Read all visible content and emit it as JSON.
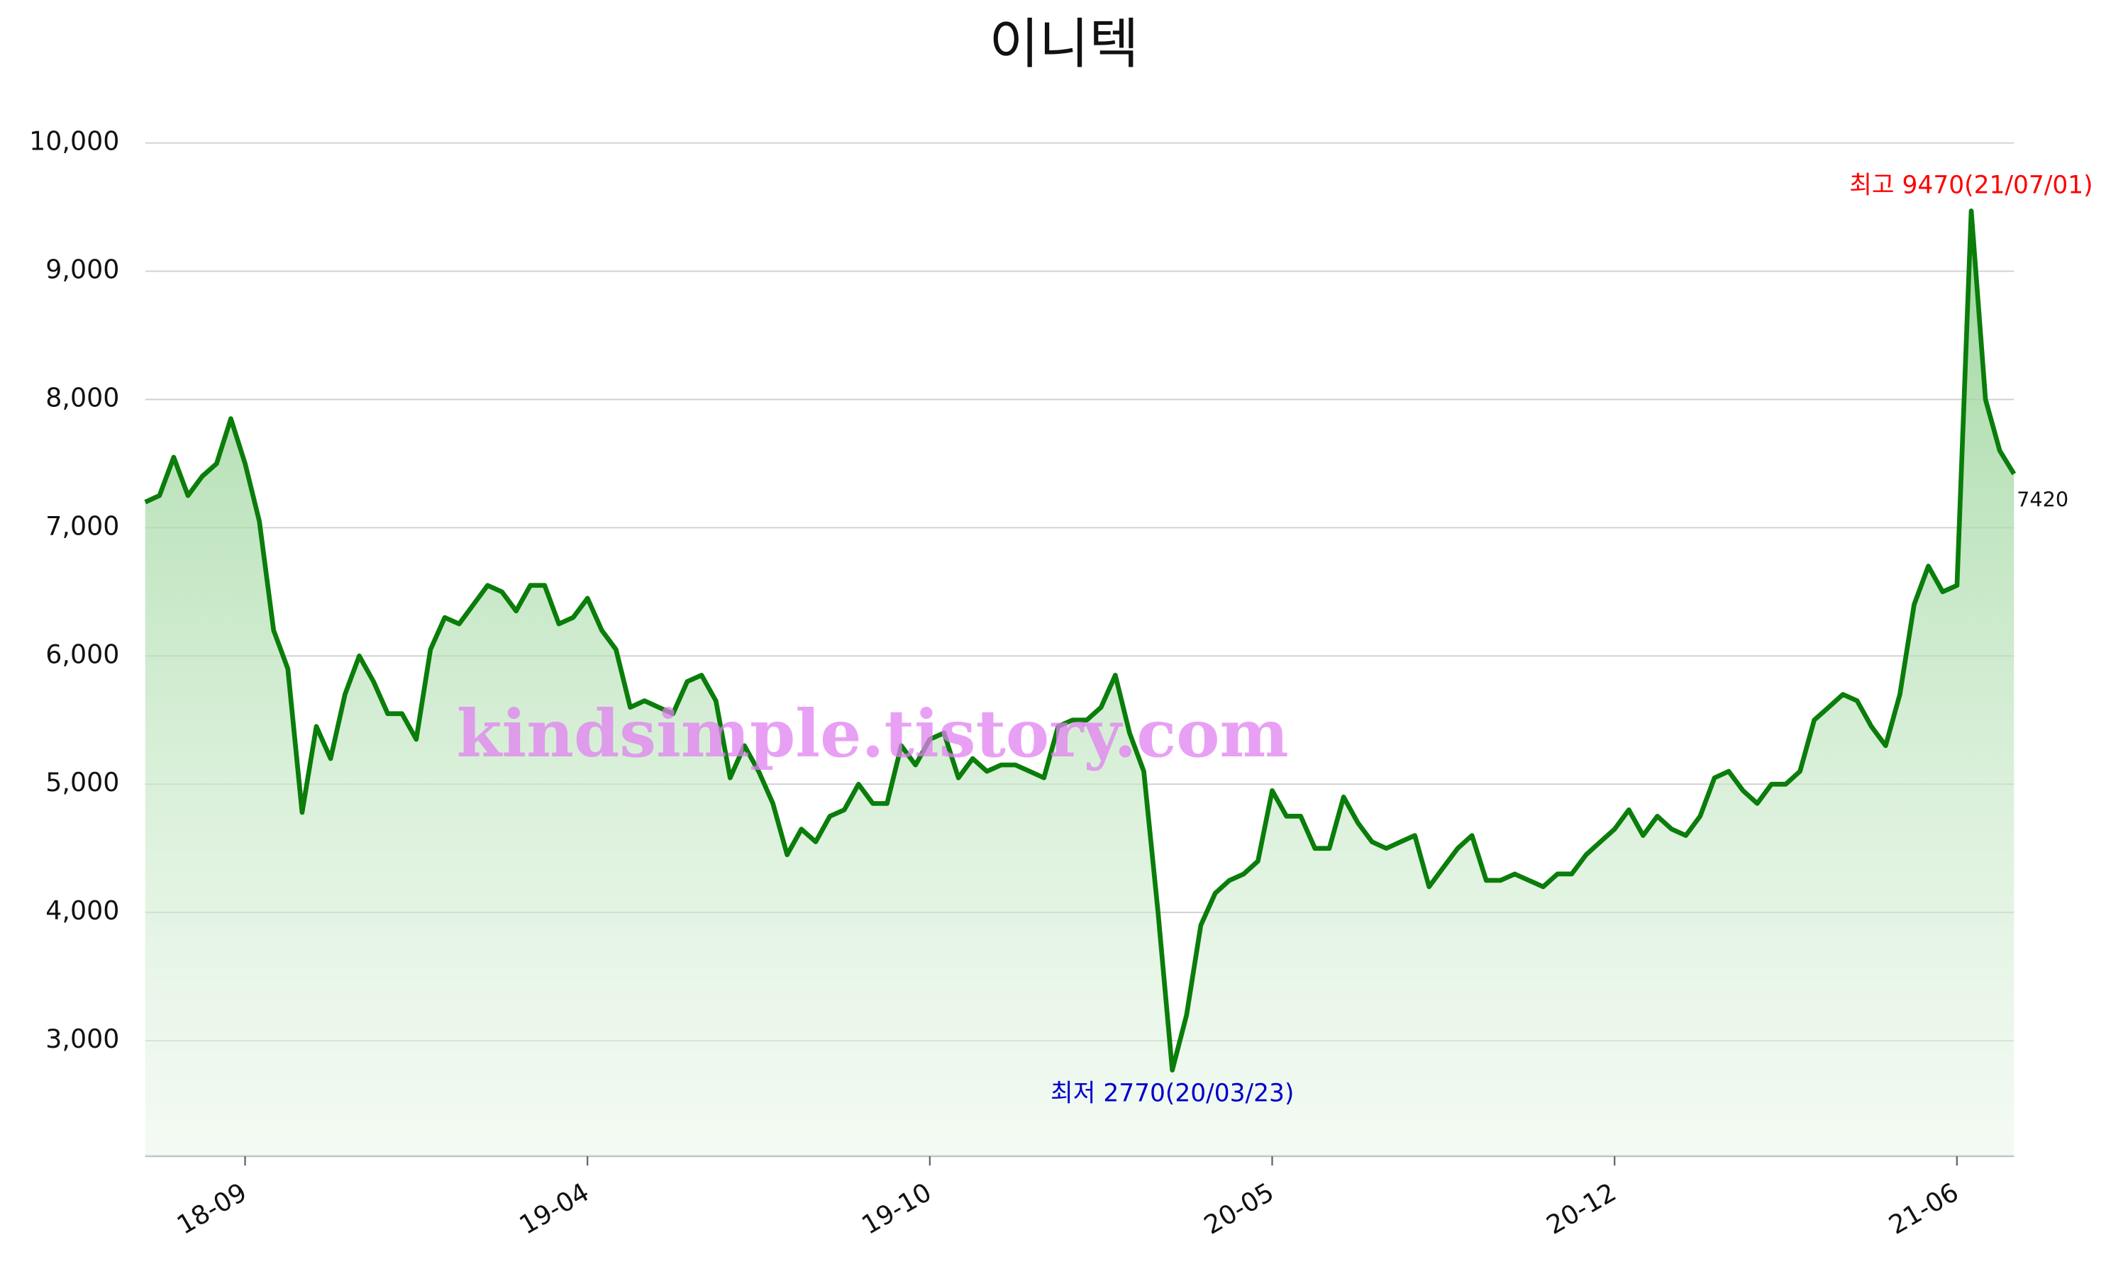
{
  "chart_data": {
    "type": "line",
    "title": "이니텍",
    "watermark": "kindsimple.tistory.com",
    "categories": [
      null,
      null,
      null,
      null,
      null,
      null,
      null,
      "18-09",
      null,
      null,
      null,
      null,
      null,
      null,
      null,
      null,
      null,
      null,
      null,
      null,
      null,
      null,
      null,
      null,
      null,
      null,
      null,
      null,
      null,
      null,
      null,
      "19-04",
      null,
      null,
      null,
      null,
      null,
      null,
      null,
      null,
      null,
      null,
      null,
      null,
      null,
      null,
      null,
      null,
      null,
      null,
      null,
      null,
      null,
      null,
      null,
      "19-10",
      null,
      null,
      null,
      null,
      null,
      null,
      null,
      null,
      null,
      null,
      null,
      null,
      null,
      null,
      null,
      null,
      null,
      null,
      null,
      null,
      null,
      null,
      null,
      "20-05",
      null,
      null,
      null,
      null,
      null,
      null,
      null,
      null,
      null,
      null,
      null,
      null,
      null,
      null,
      null,
      null,
      null,
      null,
      null,
      null,
      null,
      null,
      null,
      "20-12",
      null,
      null,
      null,
      null,
      null,
      null,
      null,
      null,
      null,
      null,
      null,
      null,
      null,
      null,
      null,
      null,
      null,
      null,
      null,
      null,
      null,
      null,
      null,
      "21-06",
      null,
      null,
      null,
      null
    ],
    "series": [
      {
        "color": "#0a7d0a",
        "values": [
          7200,
          7250,
          7550,
          7250,
          7400,
          7500,
          7850,
          7500,
          7050,
          6200,
          5900,
          4780,
          5450,
          5200,
          5700,
          6000,
          5800,
          5550,
          5550,
          5350,
          6050,
          6300,
          6250,
          6400,
          6550,
          6500,
          6350,
          6550,
          6550,
          6250,
          6300,
          6450,
          6200,
          6050,
          5600,
          5650,
          5600,
          5550,
          5800,
          5850,
          5650,
          5050,
          5300,
          5100,
          4850,
          4450,
          4650,
          4550,
          4750,
          4800,
          5000,
          4850,
          4850,
          5300,
          5150,
          5350,
          5400,
          5050,
          5200,
          5100,
          5150,
          5150,
          5100,
          5050,
          5450,
          5500,
          5500,
          5600,
          5850,
          5400,
          5100,
          4000,
          2770,
          3200,
          3900,
          4150,
          4250,
          4300,
          4400,
          4950,
          4750,
          4750,
          4500,
          4500,
          4900,
          4700,
          4550,
          4500,
          4550,
          4600,
          4200,
          4350,
          4500,
          4600,
          4250,
          4250,
          4300,
          4250,
          4200,
          4300,
          4300,
          4450,
          4550,
          4650,
          4800,
          4600,
          4750,
          4650,
          4600,
          4750,
          5050,
          5100,
          4950,
          4850,
          5000,
          5000,
          5100,
          5500,
          5600,
          5700,
          5650,
          5450,
          5300,
          5700,
          6400,
          6700,
          6500,
          6550,
          9470,
          8000,
          7600,
          7420
        ]
      }
    ],
    "ylim": [
      2100,
      10000
    ],
    "yticks": [
      {
        "value": 3000,
        "label": "3,000"
      },
      {
        "value": 4000,
        "label": "4,000"
      },
      {
        "value": 5000,
        "label": "5,000"
      },
      {
        "value": 6000,
        "label": "6,000"
      },
      {
        "value": 7000,
        "label": "7,000"
      },
      {
        "value": 8000,
        "label": "8,000"
      },
      {
        "value": 9000,
        "label": "9,000"
      },
      {
        "value": 10000,
        "label": "10,000"
      }
    ],
    "grid": true,
    "annotations": [
      {
        "text": "최고 9470(21/07/01)",
        "color": "#ff0000",
        "at": "max"
      },
      {
        "text": "최저 2770(20/03/23)",
        "color": "#0000cc",
        "at": "min"
      }
    ]
  }
}
